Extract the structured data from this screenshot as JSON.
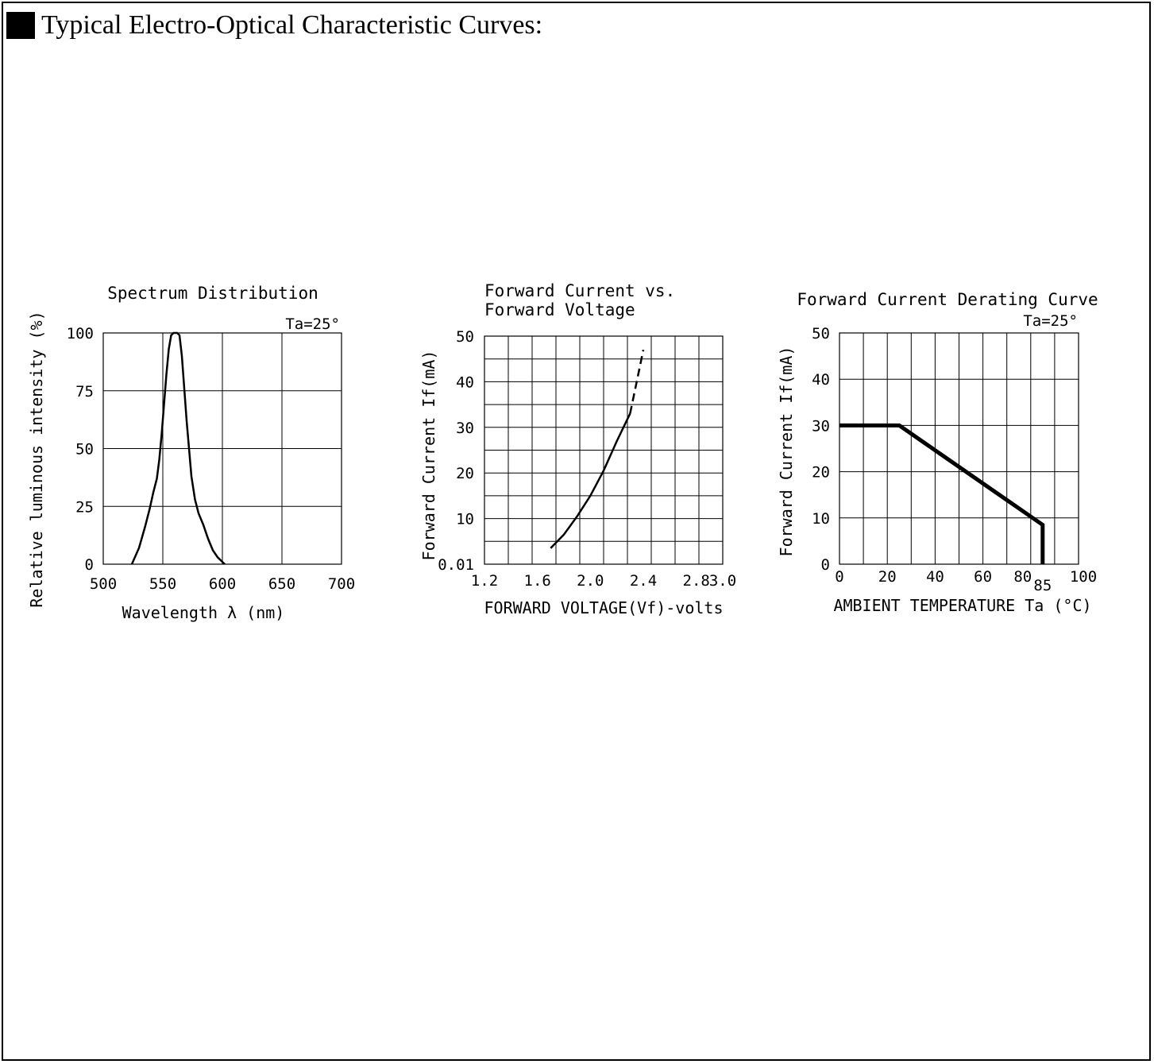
{
  "page": {
    "heading": "Typical Electro-Optical Characteristic Curves:"
  },
  "chart_data": [
    {
      "type": "line",
      "title": "Spectrum Distribution",
      "note": "Ta=25°",
      "xlabel": "Wavelength λ (nm)",
      "ylabel": "Relative luminous intensity (%)",
      "xlim": [
        500,
        700
      ],
      "ylim": [
        0,
        100
      ],
      "xticks": [
        "500",
        "550",
        "600",
        "650",
        "700"
      ],
      "yticks": [
        "0",
        "25",
        "50",
        "75",
        "100"
      ],
      "grid": true,
      "series": [
        {
          "x": [
            524,
            530,
            535,
            539,
            542,
            545,
            547,
            549,
            551,
            553,
            555,
            557,
            559,
            561,
            562,
            564,
            566,
            568,
            570,
            572,
            574,
            577,
            580,
            584,
            588,
            592,
            596,
            600,
            602
          ],
          "y": [
            0,
            7,
            16,
            24,
            31,
            37,
            45,
            56,
            69,
            82,
            93,
            99,
            100,
            100,
            100,
            99,
            90,
            76,
            62,
            50,
            38,
            28,
            22,
            17,
            11,
            6,
            3,
            1,
            0
          ]
        }
      ]
    },
    {
      "type": "line",
      "title": "Forward Current vs.",
      "title2": "Forward Voltage",
      "xlabel": "FORWARD VOLTAGE(Vf)-volts",
      "ylabel": "Forward Current If(mA)",
      "xlim": [
        1.2,
        3.0
      ],
      "ylim": [
        0,
        50
      ],
      "xticks": [
        "1.2",
        "1.6",
        "2.0",
        "2.4",
        "2.8",
        "3.0"
      ],
      "yticks": [
        "0.01",
        "10",
        "20",
        "30",
        "40",
        "50"
      ],
      "grid": true,
      "series": [
        {
          "x": [
            1.7,
            1.8,
            1.9,
            2.0,
            2.1,
            2.2,
            2.3
          ],
          "y": [
            3.5,
            6.5,
            10.5,
            15,
            20.5,
            27,
            33
          ]
        },
        {
          "style": "dashed",
          "x": [
            2.3,
            2.35,
            2.4
          ],
          "y": [
            33,
            40,
            47
          ]
        }
      ]
    },
    {
      "type": "line",
      "title": "Forward Current Derating Curve",
      "note": "Ta=25°",
      "xlabel": "AMBIENT TEMPERATURE Ta (°C)",
      "ylabel": "Forward Current If(mA)",
      "xlim": [
        0,
        100
      ],
      "ylim": [
        0,
        50
      ],
      "xticks": [
        "0",
        "20",
        "40",
        "60",
        "80",
        "85",
        "100"
      ],
      "yticks": [
        "0",
        "10",
        "20",
        "30",
        "40",
        "50"
      ],
      "grid": true,
      "series": [
        {
          "x": [
            0,
            25,
            85,
            85
          ],
          "y": [
            30,
            30,
            8.5,
            0
          ]
        }
      ]
    }
  ]
}
